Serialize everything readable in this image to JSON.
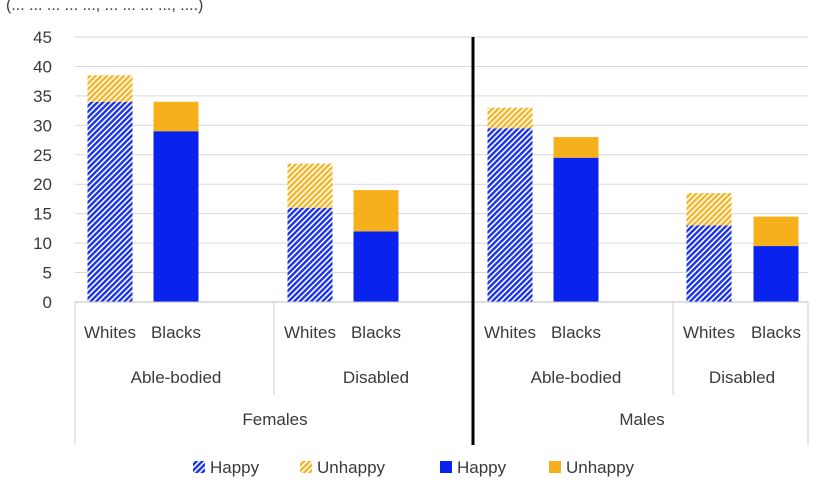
{
  "header_fragment": "(... ... ... ... ..., ... ... ... ..., ....)",
  "chart_data": {
    "type": "bar",
    "stacked": true,
    "title": "",
    "xlabel": "",
    "ylabel": "",
    "ylim": [
      0,
      45
    ],
    "yticks": [
      0,
      5,
      10,
      15,
      20,
      25,
      30,
      35,
      40,
      45
    ],
    "grid": true,
    "legend_position": "bottom",
    "categories": [
      "Whites",
      "Blacks",
      "Whites",
      "Blacks",
      "Whites",
      "Blacks",
      "Whites",
      "Blacks"
    ],
    "subgroups": [
      "Able-bodied",
      "Disabled",
      "Able-bodied",
      "Disabled"
    ],
    "groups": [
      "Females",
      "Males"
    ],
    "happy": [
      34,
      29,
      16,
      12,
      29.5,
      24.5,
      13,
      9.5
    ],
    "unhappy": [
      4.5,
      5,
      7.5,
      7,
      3.5,
      3.5,
      5.5,
      5
    ],
    "series": [
      {
        "name": "Happy",
        "color": "#1a33e6",
        "pattern": "hatched",
        "applies_to": "Whites"
      },
      {
        "name": "Unhappy",
        "color": "#f5b524",
        "pattern": "hatched",
        "applies_to": "Whites"
      },
      {
        "name": "Happy",
        "color": "#0a22ee",
        "pattern": "solid",
        "applies_to": "Blacks"
      },
      {
        "name": "Unhappy",
        "color": "#f5b01c",
        "pattern": "solid",
        "applies_to": "Blacks"
      }
    ]
  }
}
